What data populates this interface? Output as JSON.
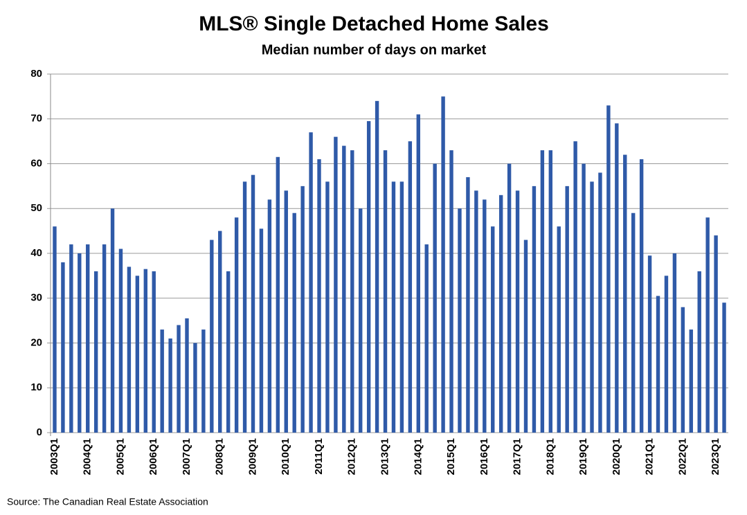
{
  "chart_data": {
    "type": "bar",
    "title": "MLS® Single Detached Home Sales",
    "subtitle": "Median number of days on market",
    "source": "Source: The Canadian Real Estate Association",
    "categories": [
      "2003Q1",
      null,
      null,
      null,
      "2004Q1",
      null,
      null,
      null,
      "2005Q1",
      null,
      null,
      null,
      "2006Q1",
      null,
      null,
      null,
      "2007Q1",
      null,
      null,
      null,
      "2008Q1",
      null,
      null,
      null,
      "2009Q1",
      null,
      null,
      null,
      "2010Q1",
      null,
      null,
      null,
      "2011Q1",
      null,
      null,
      null,
      "2012Q1",
      null,
      null,
      null,
      "2013Q1",
      null,
      null,
      null,
      "2014Q1",
      null,
      null,
      null,
      "2015Q1",
      null,
      null,
      null,
      "2016Q1",
      null,
      null,
      null,
      "2017Q1",
      null,
      null,
      null,
      "2018Q1",
      null,
      null,
      null,
      "2019Q1",
      null,
      null,
      null,
      "2020Q1",
      null,
      null,
      null,
      "2021Q1",
      null,
      null,
      null,
      "2022Q1",
      null,
      null,
      null,
      "2023Q1",
      null
    ],
    "values": [
      46,
      38,
      42,
      40,
      42,
      36,
      42,
      50,
      41,
      37,
      35,
      36.5,
      36,
      23,
      21,
      24,
      25.5,
      20,
      23,
      43,
      45,
      36,
      48,
      56,
      57.5,
      45.5,
      52,
      61.5,
      54,
      49,
      55,
      67,
      61,
      56,
      66,
      64,
      63,
      50,
      69.5,
      74,
      63,
      56,
      56,
      65,
      71,
      42,
      60,
      75,
      63,
      50,
      57,
      54,
      52,
      46,
      53,
      60,
      54,
      43,
      55,
      63,
      63,
      46,
      55,
      65,
      60,
      56,
      58,
      73,
      69,
      62,
      49,
      61,
      39.5,
      30.5,
      35,
      40,
      28,
      23,
      36,
      48,
      44,
      29
    ],
    "color": "#2f5aa8",
    "ylim": [
      0,
      80
    ],
    "yticks": [
      0,
      10,
      20,
      30,
      40,
      50,
      60,
      70,
      80
    ],
    "grid": true
  }
}
